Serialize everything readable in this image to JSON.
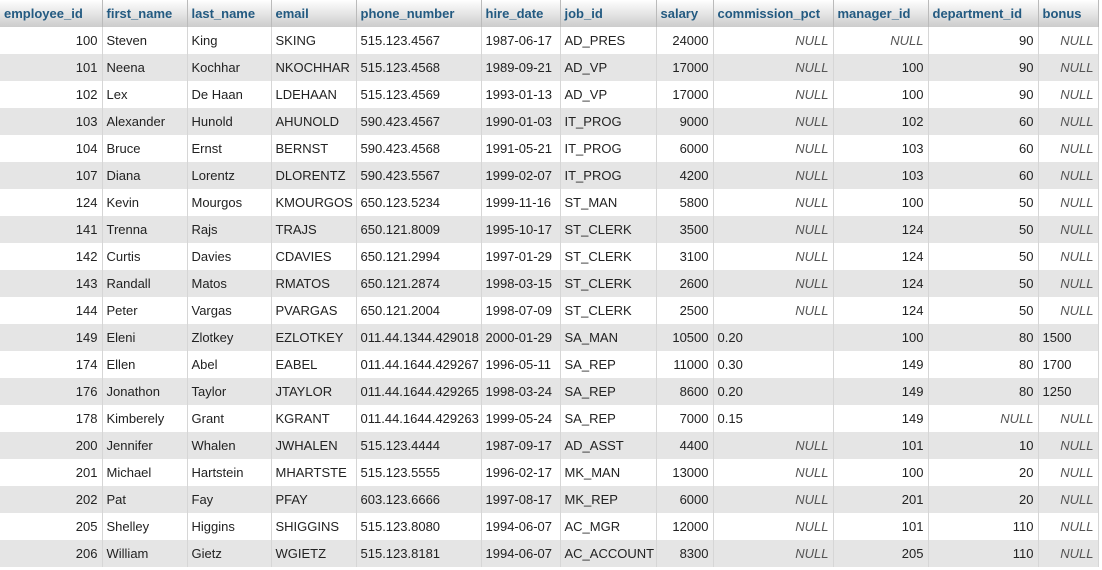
{
  "table": {
    "columns": [
      "employee_id",
      "first_name",
      "last_name",
      "email",
      "phone_number",
      "hire_date",
      "job_id",
      "salary",
      "commission_pct",
      "manager_id",
      "department_id",
      "bonus"
    ],
    "rows": [
      [
        "100",
        "Steven",
        "King",
        "SKING",
        "515.123.4567",
        "1987-06-17",
        "AD_PRES",
        "24000",
        "NULL",
        "NULL",
        "90",
        "NULL"
      ],
      [
        "101",
        "Neena",
        "Kochhar",
        "NKOCHHAR",
        "515.123.4568",
        "1989-09-21",
        "AD_VP",
        "17000",
        "NULL",
        "100",
        "90",
        "NULL"
      ],
      [
        "102",
        "Lex",
        "De Haan",
        "LDEHAAN",
        "515.123.4569",
        "1993-01-13",
        "AD_VP",
        "17000",
        "NULL",
        "100",
        "90",
        "NULL"
      ],
      [
        "103",
        "Alexander",
        "Hunold",
        "AHUNOLD",
        "590.423.4567",
        "1990-01-03",
        "IT_PROG",
        "9000",
        "NULL",
        "102",
        "60",
        "NULL"
      ],
      [
        "104",
        "Bruce",
        "Ernst",
        "BERNST",
        "590.423.4568",
        "1991-05-21",
        "IT_PROG",
        "6000",
        "NULL",
        "103",
        "60",
        "NULL"
      ],
      [
        "107",
        "Diana",
        "Lorentz",
        "DLORENTZ",
        "590.423.5567",
        "1999-02-07",
        "IT_PROG",
        "4200",
        "NULL",
        "103",
        "60",
        "NULL"
      ],
      [
        "124",
        "Kevin",
        "Mourgos",
        "KMOURGOS",
        "650.123.5234",
        "1999-11-16",
        "ST_MAN",
        "5800",
        "NULL",
        "100",
        "50",
        "NULL"
      ],
      [
        "141",
        "Trenna",
        "Rajs",
        "TRAJS",
        "650.121.8009",
        "1995-10-17",
        "ST_CLERK",
        "3500",
        "NULL",
        "124",
        "50",
        "NULL"
      ],
      [
        "142",
        "Curtis",
        "Davies",
        "CDAVIES",
        "650.121.2994",
        "1997-01-29",
        "ST_CLERK",
        "3100",
        "NULL",
        "124",
        "50",
        "NULL"
      ],
      [
        "143",
        "Randall",
        "Matos",
        "RMATOS",
        "650.121.2874",
        "1998-03-15",
        "ST_CLERK",
        "2600",
        "NULL",
        "124",
        "50",
        "NULL"
      ],
      [
        "144",
        "Peter",
        "Vargas",
        "PVARGAS",
        "650.121.2004",
        "1998-07-09",
        "ST_CLERK",
        "2500",
        "NULL",
        "124",
        "50",
        "NULL"
      ],
      [
        "149",
        "Eleni",
        "Zlotkey",
        "EZLOTKEY",
        "011.44.1344.429018",
        "2000-01-29",
        "SA_MAN",
        "10500",
        "0.20",
        "100",
        "80",
        "1500"
      ],
      [
        "174",
        "Ellen",
        "Abel",
        "EABEL",
        "011.44.1644.429267",
        "1996-05-11",
        "SA_REP",
        "11000",
        "0.30",
        "149",
        "80",
        "1700"
      ],
      [
        "176",
        "Jonathon",
        "Taylor",
        "JTAYLOR",
        "011.44.1644.429265",
        "1998-03-24",
        "SA_REP",
        "8600",
        "0.20",
        "149",
        "80",
        "1250"
      ],
      [
        "178",
        "Kimberely",
        "Grant",
        "KGRANT",
        "011.44.1644.429263",
        "1999-05-24",
        "SA_REP",
        "7000",
        "0.15",
        "149",
        "NULL",
        "NULL"
      ],
      [
        "200",
        "Jennifer",
        "Whalen",
        "JWHALEN",
        "515.123.4444",
        "1987-09-17",
        "AD_ASST",
        "4400",
        "NULL",
        "101",
        "10",
        "NULL"
      ],
      [
        "201",
        "Michael",
        "Hartstein",
        "MHARTSTE",
        "515.123.5555",
        "1996-02-17",
        "MK_MAN",
        "13000",
        "NULL",
        "100",
        "20",
        "NULL"
      ],
      [
        "202",
        "Pat",
        "Fay",
        "PFAY",
        "603.123.6666",
        "1997-08-17",
        "MK_REP",
        "6000",
        "NULL",
        "201",
        "20",
        "NULL"
      ],
      [
        "205",
        "Shelley",
        "Higgins",
        "SHIGGINS",
        "515.123.8080",
        "1994-06-07",
        "AC_MGR",
        "12000",
        "NULL",
        "101",
        "110",
        "NULL"
      ],
      [
        "206",
        "William",
        "Gietz",
        "WGIETZ",
        "515.123.8181",
        "1994-06-07",
        "AC_ACCOUNT",
        "8300",
        "NULL",
        "205",
        "110",
        "NULL"
      ]
    ]
  }
}
